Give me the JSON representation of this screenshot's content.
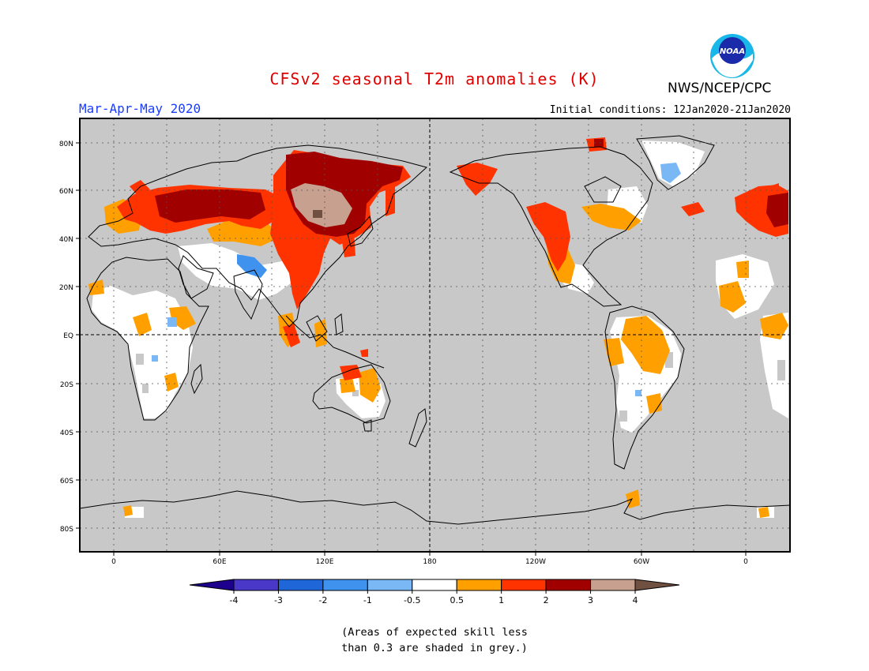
{
  "title": "CFSv2 seasonal T2m anomalies (K)",
  "season": "Mar-Apr-May 2020",
  "agency": "NWS/NCEP/CPC",
  "initial_conditions": "Initial conditions: 12Jan2020-21Jan2020",
  "logo_text": "NOAA",
  "map": {
    "latitude_labels": [
      "80N",
      "60N",
      "40N",
      "20N",
      "EQ",
      "20S",
      "40S",
      "60S",
      "80S"
    ],
    "longitude_labels": [
      "0",
      "60E",
      "120E",
      "180",
      "120W",
      "60W",
      "0"
    ],
    "background_color": "#c8c8c8",
    "coastline_color": "#000000"
  },
  "legend": {
    "ticks": [
      "-4",
      "-3",
      "-2",
      "-1",
      "-0.5",
      "0.5",
      "1",
      "2",
      "3",
      "4"
    ],
    "colors": [
      "#1d008c",
      "#4a39c8",
      "#1f66d8",
      "#3f93ee",
      "#7ab8f5",
      "#ffffff",
      "#ffa000",
      "#ff3300",
      "#a00000",
      "#c8a090",
      "#705040"
    ]
  },
  "footnote": [
    "(Areas of expected skill less",
    "than 0.3 are shaded in grey.)"
  ]
}
